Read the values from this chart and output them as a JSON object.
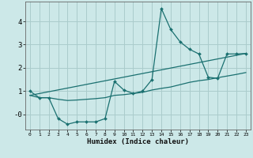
{
  "xlabel": "Humidex (Indice chaleur)",
  "bg_color": "#cce8e8",
  "grid_color": "#aacccc",
  "line_color": "#1a7070",
  "xlim": [
    -0.5,
    23.5
  ],
  "ylim": [
    -0.65,
    4.85
  ],
  "xticks": [
    0,
    1,
    2,
    3,
    4,
    5,
    6,
    7,
    8,
    9,
    10,
    11,
    12,
    13,
    14,
    15,
    16,
    17,
    18,
    19,
    20,
    21,
    22,
    23
  ],
  "yticks": [
    0,
    1,
    2,
    3,
    4
  ],
  "ytick_labels": [
    "-0",
    "1",
    "2",
    "3",
    "4"
  ],
  "line1_x": [
    0,
    1,
    2,
    3,
    4,
    5,
    6,
    7,
    8,
    9,
    10,
    11,
    12,
    13,
    14,
    15,
    16,
    17,
    18,
    19,
    20,
    21,
    22,
    23
  ],
  "line1_y": [
    1.0,
    0.72,
    0.72,
    -0.18,
    -0.42,
    -0.32,
    -0.32,
    -0.32,
    -0.18,
    1.42,
    1.05,
    0.9,
    1.0,
    1.5,
    4.55,
    3.65,
    3.12,
    2.8,
    2.6,
    1.6,
    1.55,
    2.6,
    2.6,
    2.62
  ],
  "line2_x": [
    0,
    1,
    2,
    3,
    4,
    5,
    6,
    7,
    8,
    9,
    10,
    11,
    12,
    13,
    14,
    15,
    16,
    17,
    18,
    19,
    20,
    21,
    22,
    23
  ],
  "line2_y": [
    0.82,
    0.72,
    0.72,
    0.65,
    0.6,
    0.62,
    0.65,
    0.68,
    0.72,
    0.82,
    0.85,
    0.9,
    0.95,
    1.05,
    1.12,
    1.18,
    1.28,
    1.38,
    1.45,
    1.5,
    1.58,
    1.65,
    1.72,
    1.8
  ],
  "line3_x": [
    0,
    23
  ],
  "line3_y": [
    0.82,
    2.62
  ]
}
